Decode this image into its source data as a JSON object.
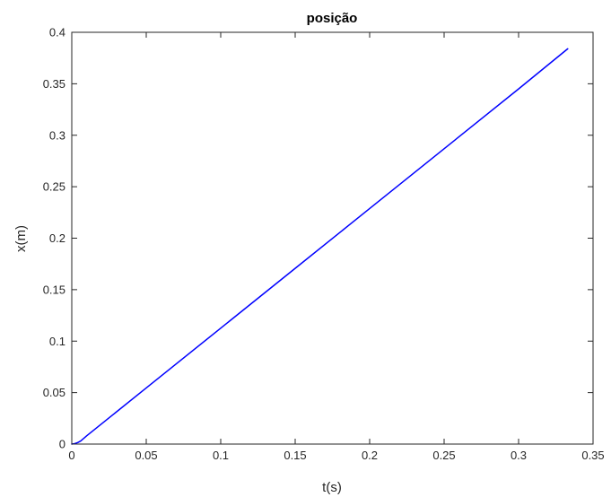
{
  "chart_data": {
    "type": "line",
    "title": "posição",
    "xlabel": "t(s)",
    "ylabel": "x(m)",
    "xlim": [
      0,
      0.35
    ],
    "ylim": [
      0,
      0.4
    ],
    "xticks": [
      0,
      0.05,
      0.1,
      0.15,
      0.2,
      0.25,
      0.3,
      0.35
    ],
    "xtick_labels": [
      "0",
      "0.05",
      "0.1",
      "0.15",
      "0.2",
      "0.25",
      "0.3",
      "0.35"
    ],
    "yticks": [
      0,
      0.05,
      0.1,
      0.15,
      0.2,
      0.25,
      0.3,
      0.35,
      0.4
    ],
    "ytick_labels": [
      "0",
      "0.05",
      "0.1",
      "0.15",
      "0.2",
      "0.25",
      "0.3",
      "0.35",
      "0.4"
    ],
    "grid": false,
    "box": true,
    "series": [
      {
        "color": "#0000ff",
        "x": [
          0,
          0.002,
          0.004,
          0.006,
          0.008,
          0.01,
          0.05,
          0.1,
          0.15,
          0.2,
          0.25,
          0.3,
          0.333
        ],
        "y": [
          0,
          0.0005,
          0.0015,
          0.003,
          0.0055,
          0.008,
          0.0545,
          0.1126,
          0.1707,
          0.2288,
          0.2869,
          0.345,
          0.384
        ]
      }
    ]
  }
}
